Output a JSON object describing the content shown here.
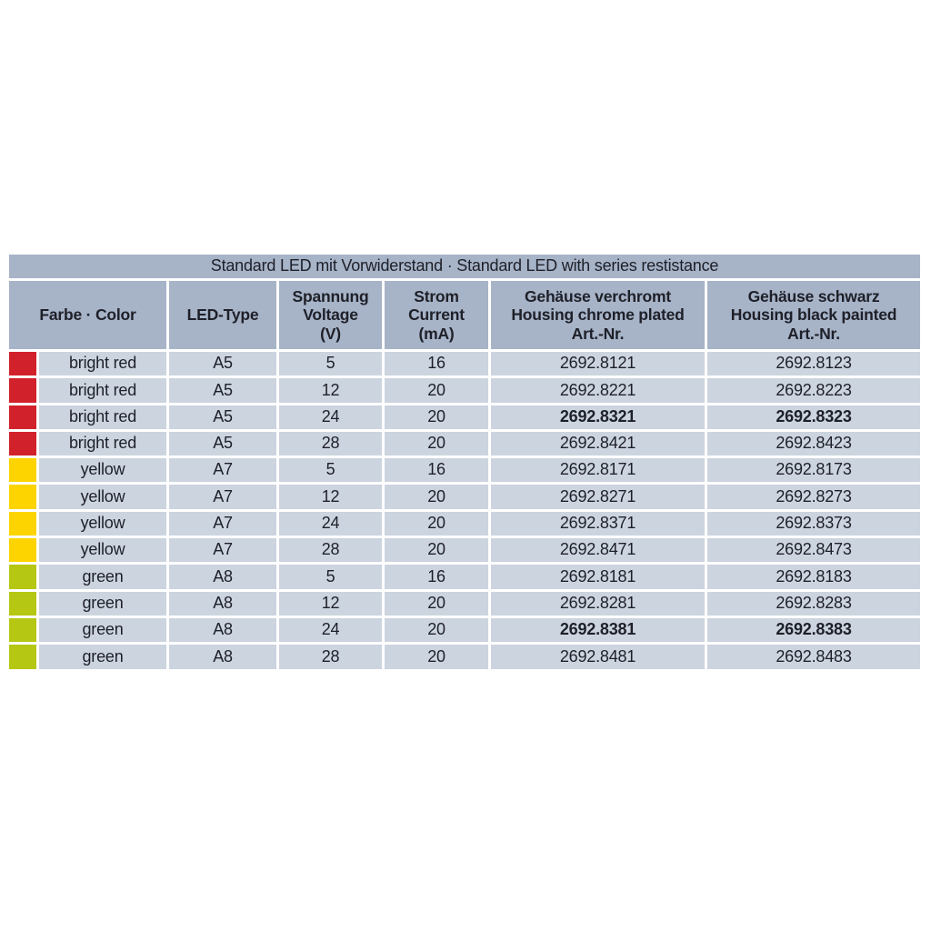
{
  "table": {
    "title": "Standard LED mit Vorwiderstand · Standard LED with series restistance",
    "headers": {
      "color": "Farbe · Color",
      "led_type": "LED-Type",
      "voltage": "Spannung\nVoltage\n(V)",
      "current": "Strom\nCurrent\n(mA)",
      "chrome": "Gehäuse verchromt\nHousing chrome plated\nArt.-Nr.",
      "black": "Gehäuse schwarz\nHousing black painted\nArt.-Nr."
    },
    "swatch_colors": {
      "red": "#d1222b",
      "yellow": "#fdd400",
      "green": "#b5c713"
    },
    "style_colors": {
      "page_bg": "#ffffff",
      "header_bg": "#a7b3c7",
      "row_bg": "#ccd4df",
      "text": "#1e2029"
    },
    "rows": [
      {
        "swatch": "red",
        "color": "bright red",
        "led_type": "A5",
        "voltage": "5",
        "current": "16",
        "chrome": "2692.8121",
        "black": "2692.8123",
        "bold": false
      },
      {
        "swatch": "red",
        "color": "bright red",
        "led_type": "A5",
        "voltage": "12",
        "current": "20",
        "chrome": "2692.8221",
        "black": "2692.8223",
        "bold": false
      },
      {
        "swatch": "red",
        "color": "bright red",
        "led_type": "A5",
        "voltage": "24",
        "current": "20",
        "chrome": "2692.8321",
        "black": "2692.8323",
        "bold": true
      },
      {
        "swatch": "red",
        "color": "bright red",
        "led_type": "A5",
        "voltage": "28",
        "current": "20",
        "chrome": "2692.8421",
        "black": "2692.8423",
        "bold": false
      },
      {
        "swatch": "yellow",
        "color": "yellow",
        "led_type": "A7",
        "voltage": "5",
        "current": "16",
        "chrome": "2692.8171",
        "black": "2692.8173",
        "bold": false
      },
      {
        "swatch": "yellow",
        "color": "yellow",
        "led_type": "A7",
        "voltage": "12",
        "current": "20",
        "chrome": "2692.8271",
        "black": "2692.8273",
        "bold": false
      },
      {
        "swatch": "yellow",
        "color": "yellow",
        "led_type": "A7",
        "voltage": "24",
        "current": "20",
        "chrome": "2692.8371",
        "black": "2692.8373",
        "bold": false
      },
      {
        "swatch": "yellow",
        "color": "yellow",
        "led_type": "A7",
        "voltage": "28",
        "current": "20",
        "chrome": "2692.8471",
        "black": "2692.8473",
        "bold": false
      },
      {
        "swatch": "green",
        "color": "green",
        "led_type": "A8",
        "voltage": "5",
        "current": "16",
        "chrome": "2692.8181",
        "black": "2692.8183",
        "bold": false
      },
      {
        "swatch": "green",
        "color": "green",
        "led_type": "A8",
        "voltage": "12",
        "current": "20",
        "chrome": "2692.8281",
        "black": "2692.8283",
        "bold": false
      },
      {
        "swatch": "green",
        "color": "green",
        "led_type": "A8",
        "voltage": "24",
        "current": "20",
        "chrome": "2692.8381",
        "black": "2692.8383",
        "bold": true
      },
      {
        "swatch": "green",
        "color": "green",
        "led_type": "A8",
        "voltage": "28",
        "current": "20",
        "chrome": "2692.8481",
        "black": "2692.8483",
        "bold": false
      }
    ]
  }
}
